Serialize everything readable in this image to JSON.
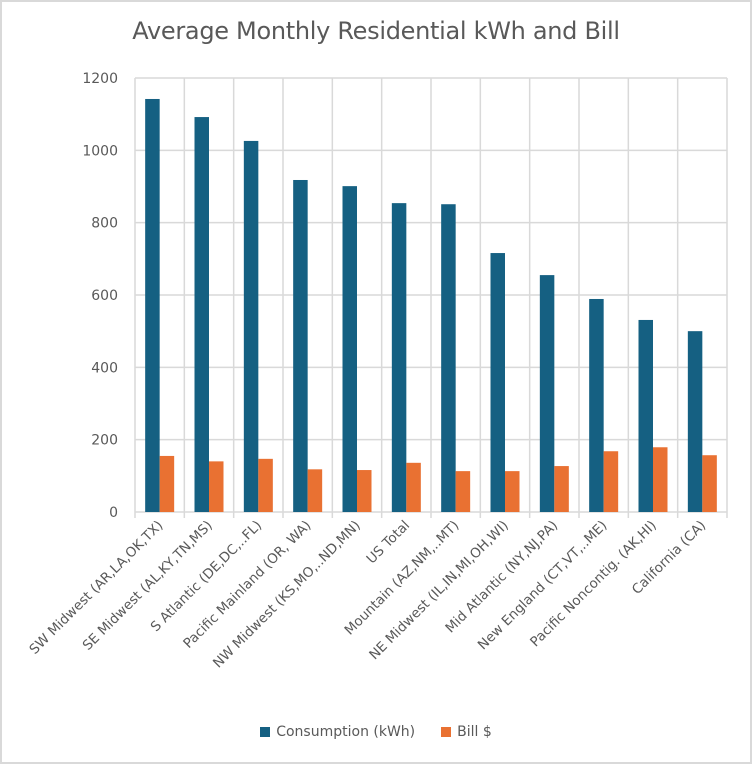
{
  "chart_data": {
    "type": "bar",
    "title": "Average Monthly Residential kWh and Bill",
    "xlabel": "",
    "ylabel": "",
    "ylim": [
      0,
      1200
    ],
    "yticks": [
      0,
      200,
      400,
      600,
      800,
      1000,
      1200
    ],
    "grid": true,
    "legend_position": "bottom",
    "categories": [
      "SW Midwest (AR,LA,OK,TX)",
      "SE Midwest (AL,KY,TN,MS)",
      "S Atlantic (DE,DC,..FL)",
      "Pacific Mainland (OR, WA)",
      "NW Midwest (KS,MO,..ND,MN)",
      "US Total",
      "Mountain (AZ,NM,..MT)",
      "NE Midwest (IL,IN,MI,OH,WI)",
      "Mid Atlantic (NY,NJ,PA)",
      "New England (CT,VT,..ME)",
      "Pacific Noncontig. (AK,HI)",
      "California (CA)"
    ],
    "series": [
      {
        "name": "Consumption (kWh)",
        "color": "#156082",
        "values": [
          1142,
          1092,
          1026,
          918,
          901,
          854,
          851,
          716,
          655,
          589,
          531,
          500
        ]
      },
      {
        "name": "Bill $",
        "color": "#e97132",
        "values": [
          155,
          140,
          147,
          118,
          116,
          136,
          113,
          113,
          127,
          168,
          179,
          157
        ]
      }
    ]
  }
}
